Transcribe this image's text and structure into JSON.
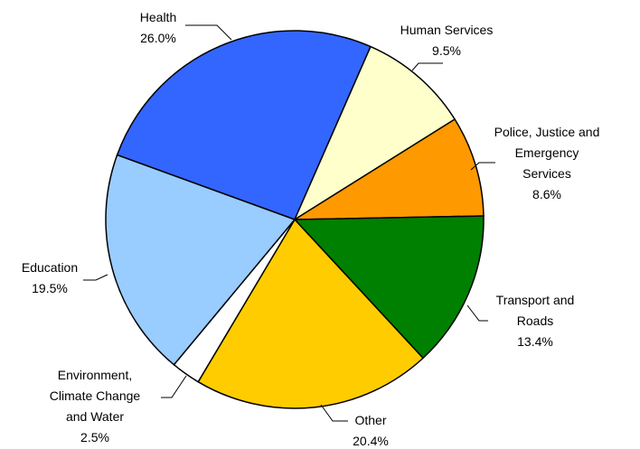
{
  "chart_data": {
    "type": "pie",
    "categories": [
      "Health",
      "Human Services",
      "Police, Justice and\nEmergency\nServices",
      "Transport and\nRoads",
      "Other",
      "Environment,\nClimate Change\nand Water",
      "Education"
    ],
    "values": [
      26.0,
      9.5,
      8.6,
      13.4,
      20.4,
      2.5,
      19.5
    ],
    "value_labels": [
      "26.0%",
      "9.5%",
      "8.6%",
      "13.4%",
      "20.4%",
      "2.5%",
      "19.5%"
    ],
    "colors": [
      "#3366ff",
      "#ffffcc",
      "#ff9900",
      "#008000",
      "#ffcc00",
      "#ffffff",
      "#99ccff"
    ]
  }
}
